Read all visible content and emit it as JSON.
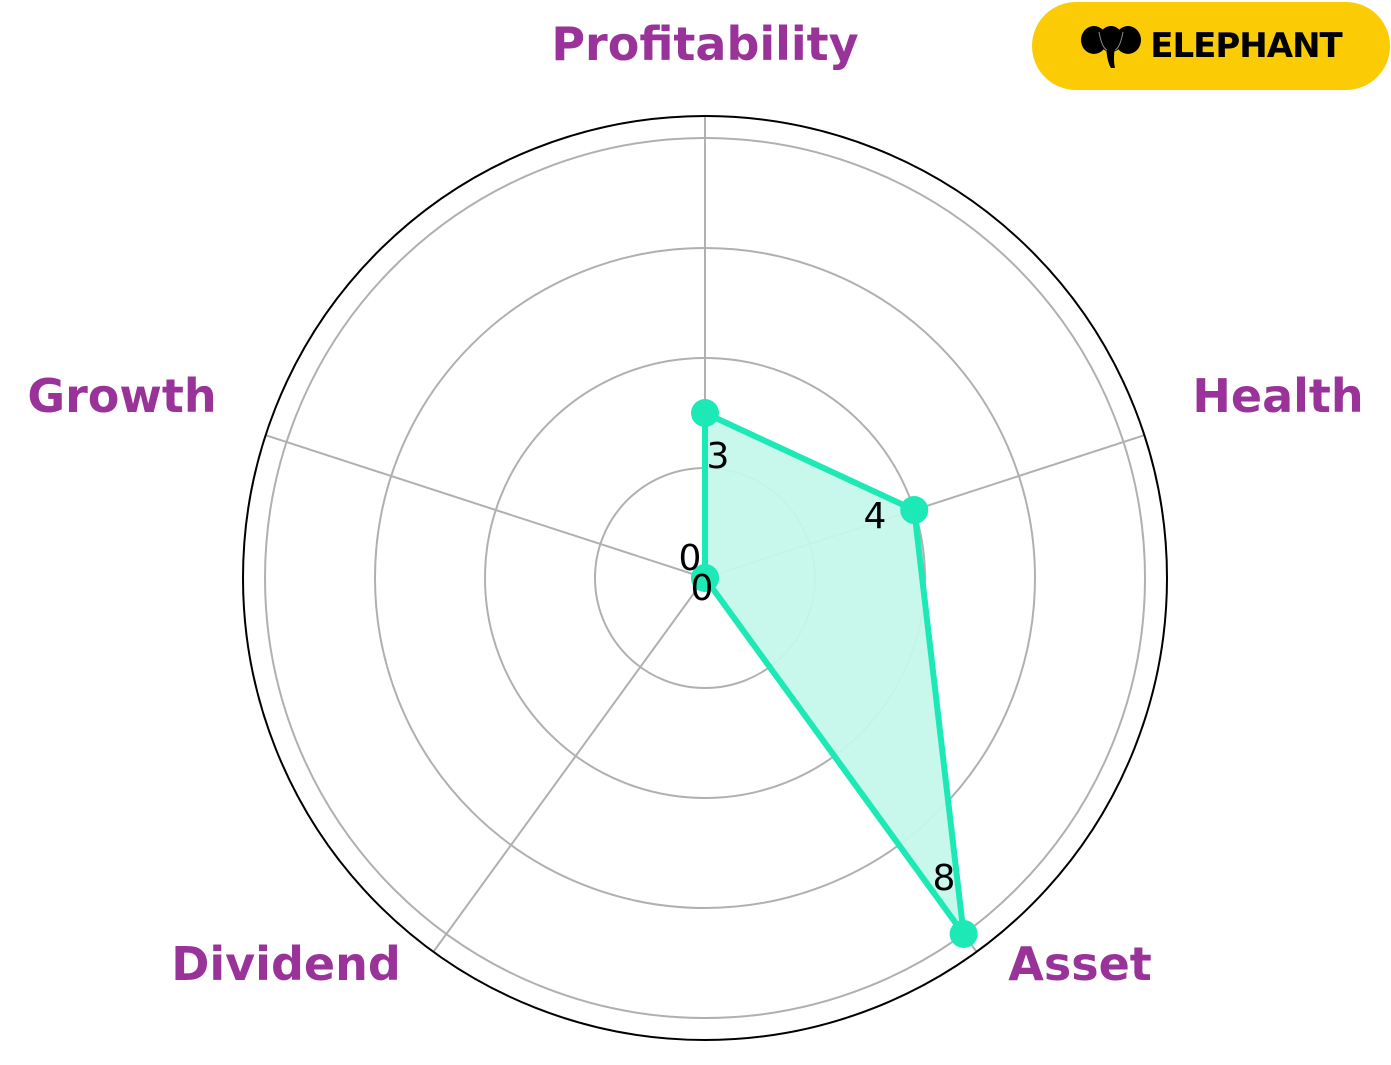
{
  "chart_data": {
    "type": "radar",
    "categories": [
      "Profitability",
      "Health",
      "Asset",
      "Dividend",
      "Growth"
    ],
    "values": [
      3,
      4,
      8,
      0,
      0
    ],
    "value_labels": [
      "3",
      "4",
      "8",
      "0",
      "0"
    ],
    "rlim": [
      0,
      8.4
    ],
    "r_gridlines": [
      2,
      4,
      6,
      8
    ],
    "grid": true,
    "direction": "clockwise",
    "start_angle": "top",
    "colors": {
      "series": "#1de9b6",
      "fill": "#c5f7ea",
      "labels": "#993399",
      "grid": "#b0b0b0",
      "frame": "#000000"
    }
  },
  "logo": {
    "text": "ELEPHANT",
    "icon": "elephant-icon",
    "background": "#fbcc05"
  }
}
